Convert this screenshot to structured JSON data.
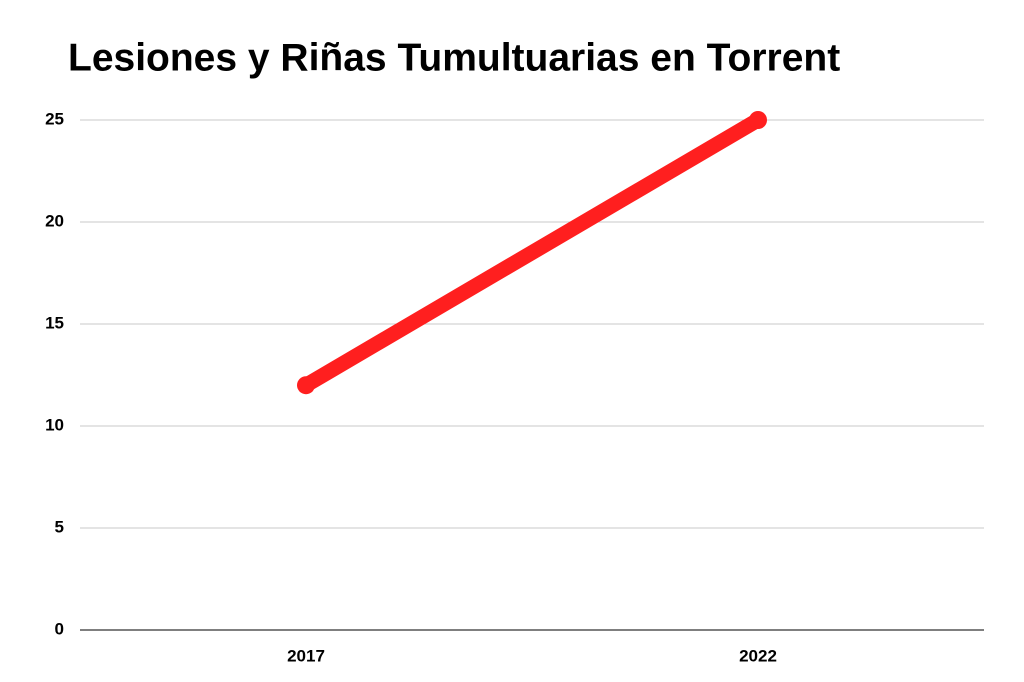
{
  "chart_data": {
    "type": "line",
    "title": "Lesiones y Riñas Tumultuarias en Torrent",
    "categories": [
      "2017",
      "2022"
    ],
    "values": [
      12,
      25
    ],
    "color": "#ff1f1f",
    "ylim": [
      0,
      25
    ],
    "yticks": [
      0,
      5,
      10,
      15,
      20,
      25
    ],
    "grid": true
  }
}
